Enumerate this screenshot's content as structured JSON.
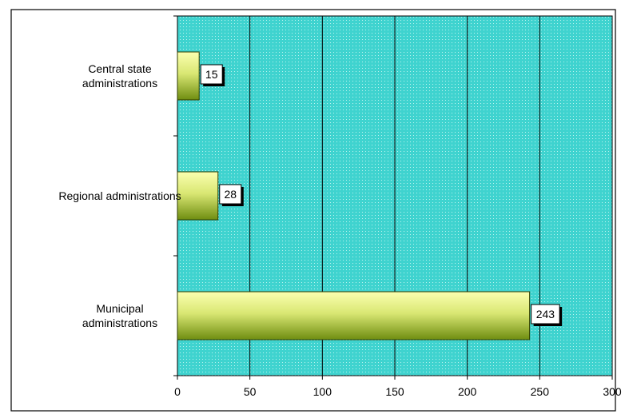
{
  "chart_data": {
    "type": "bar",
    "orientation": "horizontal",
    "categories": [
      [
        "Central state",
        "administrations"
      ],
      [
        "Regional administrations"
      ],
      [
        "Municipal",
        "administrations"
      ]
    ],
    "values": [
      15,
      28,
      243
    ],
    "xlim": [
      0,
      300
    ],
    "x_ticks": [
      0,
      50,
      100,
      150,
      200,
      250,
      300
    ],
    "x_tick_labels": [
      "0",
      "50",
      "100",
      "150",
      "200",
      "250",
      "300"
    ],
    "data_labels": [
      "15",
      "28",
      "243"
    ],
    "title": "",
    "xlabel": "",
    "ylabel": "",
    "grid": "vertical",
    "legend": "none",
    "colors": {
      "plot_bg": "#3fd3cf",
      "plot_dots": "#bdf3ef",
      "bar_light": "#fbffb0",
      "bar_mid": "#d9e773",
      "bar_dark": "#6f8d10",
      "gridline": "#000000",
      "outer_border": "#000000"
    }
  }
}
